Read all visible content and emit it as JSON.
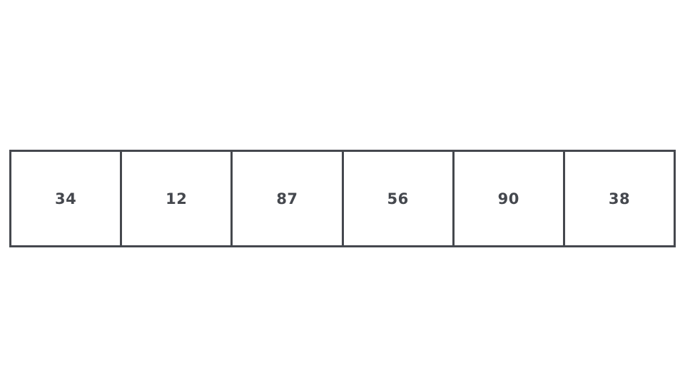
{
  "array": {
    "cells": [
      {
        "value": "34"
      },
      {
        "value": "12"
      },
      {
        "value": "87"
      },
      {
        "value": "56"
      },
      {
        "value": "90"
      },
      {
        "value": "38"
      }
    ]
  },
  "colors": {
    "stroke": "#45484e",
    "text": "#45484e",
    "background": "#ffffff"
  }
}
